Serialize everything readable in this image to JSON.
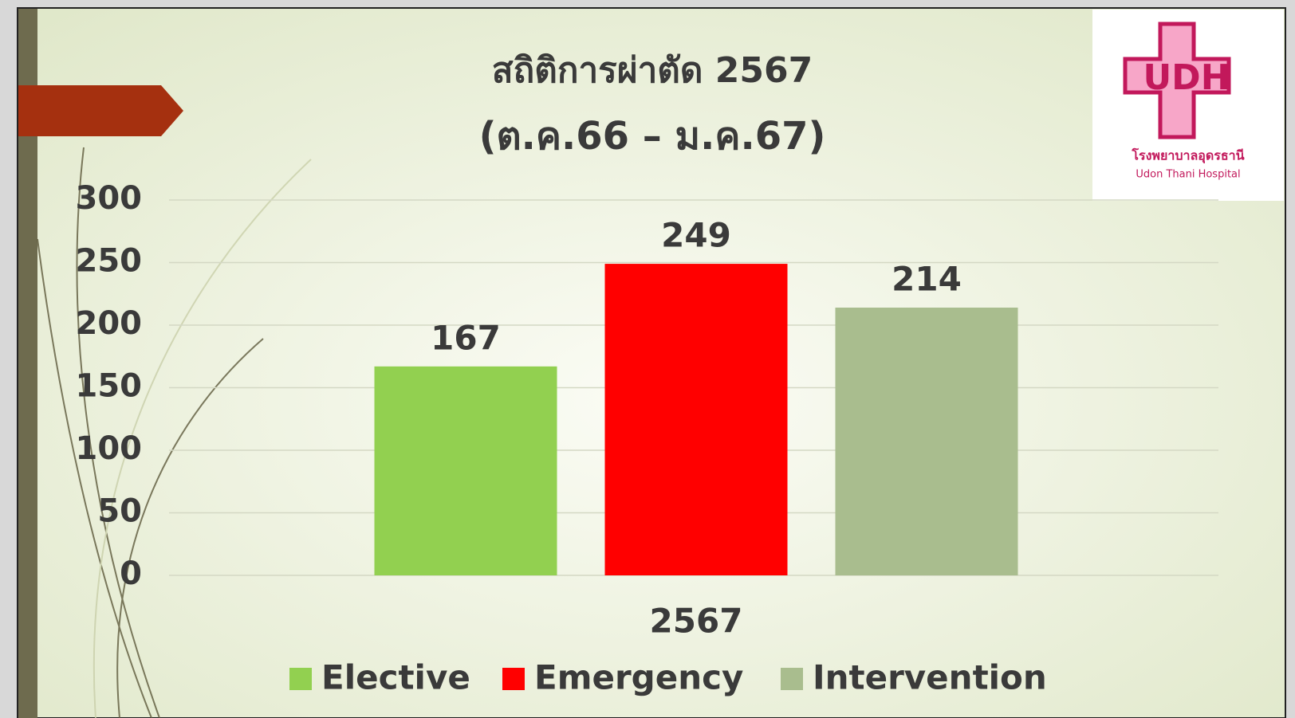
{
  "chart_data": {
    "type": "bar",
    "title": "สถิติการผ่าตัด 2567",
    "subtitle": "(ต.ค.66 – ม.ค.67)",
    "categories": [
      "2567"
    ],
    "series": [
      {
        "name": "Elective",
        "color": "#92d050",
        "values": [
          167
        ]
      },
      {
        "name": "Emergency",
        "color": "#ff0000",
        "values": [
          249
        ]
      },
      {
        "name": "Intervention",
        "color": "#a9bd8e",
        "values": [
          214
        ]
      }
    ],
    "ylim": [
      0,
      300
    ],
    "yticks": [
      0,
      50,
      100,
      150,
      200,
      250,
      300
    ],
    "grid": true,
    "legend": "bottom"
  },
  "logo": {
    "mark": "UDH",
    "name_th": "โรงพยาบาลอุดรธานี",
    "name_en": "Udon Thani Hospital"
  }
}
